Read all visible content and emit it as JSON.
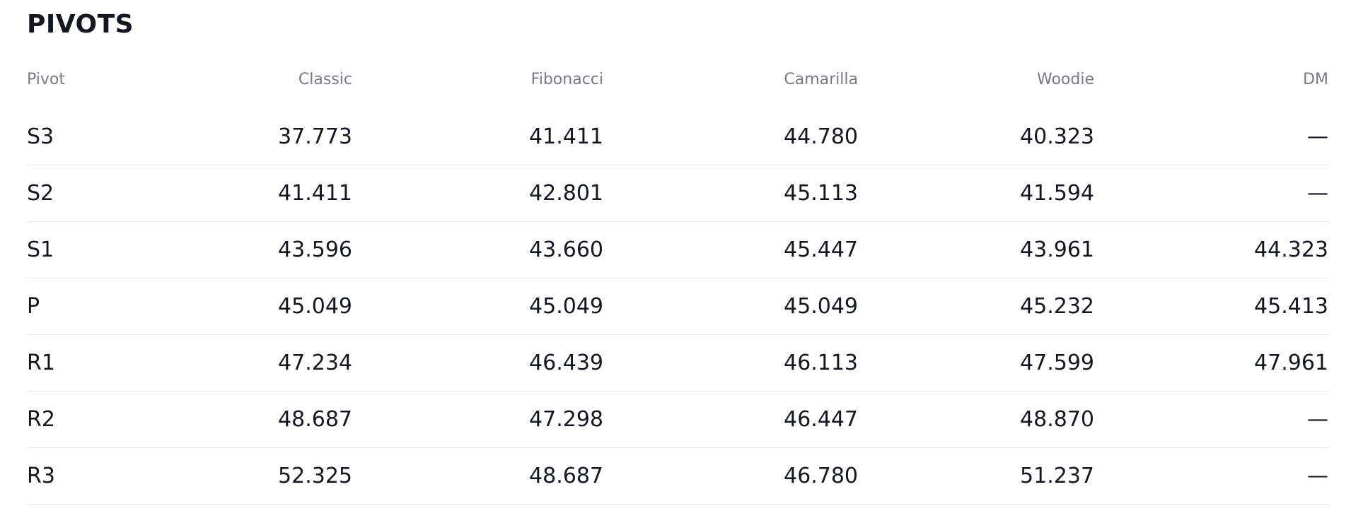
{
  "title": "PIVOTS",
  "columns": [
    "Pivot",
    "Classic",
    "Fibonacci",
    "Camarilla",
    "Woodie",
    "DM"
  ],
  "rows": [
    {
      "pivot": "S3",
      "classic": "37.773",
      "fibonacci": "41.411",
      "camarilla": "44.780",
      "woodie": "40.323",
      "dm": "—"
    },
    {
      "pivot": "S2",
      "classic": "41.411",
      "fibonacci": "42.801",
      "camarilla": "45.113",
      "woodie": "41.594",
      "dm": "—"
    },
    {
      "pivot": "S1",
      "classic": "43.596",
      "fibonacci": "43.660",
      "camarilla": "45.447",
      "woodie": "43.961",
      "dm": "44.323"
    },
    {
      "pivot": "P",
      "classic": "45.049",
      "fibonacci": "45.049",
      "camarilla": "45.049",
      "woodie": "45.232",
      "dm": "45.413"
    },
    {
      "pivot": "R1",
      "classic": "47.234",
      "fibonacci": "46.439",
      "camarilla": "46.113",
      "woodie": "47.599",
      "dm": "47.961"
    },
    {
      "pivot": "R2",
      "classic": "48.687",
      "fibonacci": "47.298",
      "camarilla": "46.447",
      "woodie": "48.870",
      "dm": "—"
    },
    {
      "pivot": "R3",
      "classic": "52.325",
      "fibonacci": "48.687",
      "camarilla": "46.780",
      "woodie": "51.237",
      "dm": "—"
    }
  ]
}
